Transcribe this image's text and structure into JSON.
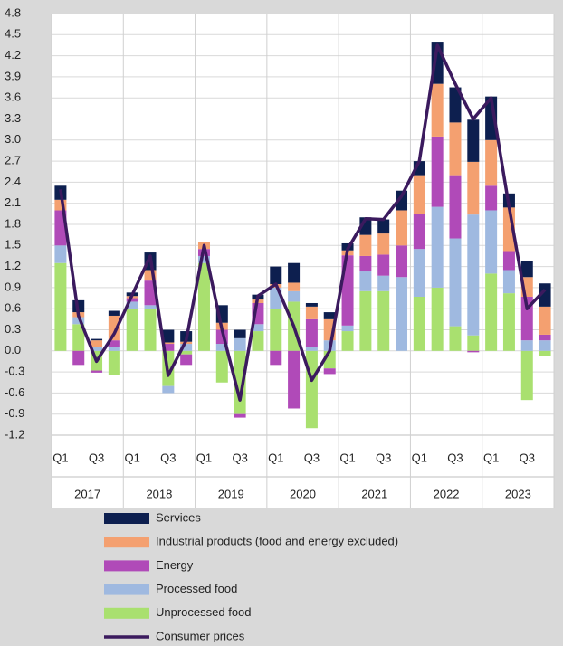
{
  "chart_data": {
    "type": "bar",
    "stacked": true,
    "categories": [
      "Q1",
      null,
      "Q3",
      null,
      "Q1",
      null,
      "Q3",
      null,
      "Q1",
      null,
      "Q3",
      null,
      "Q1",
      null,
      "Q3",
      null,
      "Q1",
      null,
      "Q3",
      null,
      "Q1",
      null,
      "Q3",
      null,
      "Q1",
      null,
      "Q3",
      null
    ],
    "groups": [
      "2017",
      "2018",
      "2019",
      "2020",
      "2021",
      "2022",
      "2023"
    ],
    "ylim": [
      -1.2,
      4.8
    ],
    "yticks": [
      -1.2,
      -0.9,
      -0.6,
      -0.3,
      {
        "value": 0,
        "label": "0.0"
      },
      0.3,
      0.6,
      0.9,
      1.2,
      1.5,
      1.8,
      2.1,
      2.4,
      2.7,
      {
        "value": 3,
        "label": "3.0"
      },
      3.3,
      3.6,
      3.9,
      4.2,
      4.5,
      4.8
    ],
    "grid": true,
    "series": [
      {
        "name": "Unprocessed food",
        "color": "#a9e06f",
        "values": [
          1.25,
          0.38,
          -0.28,
          -0.35,
          0.6,
          0.6,
          -0.5,
          -0.05,
          1.25,
          -0.45,
          -0.9,
          0.28,
          0.6,
          0.7,
          -1.1,
          -0.25,
          0.28,
          0.85,
          0.85,
          0.0,
          0.77,
          0.9,
          0.35,
          0.22,
          1.1,
          0.82,
          -0.7,
          -0.07
        ]
      },
      {
        "name": "Processed food",
        "color": "#9fb9e0",
        "values": [
          0.25,
          0.1,
          0.05,
          0.05,
          0.1,
          0.05,
          -0.1,
          0.1,
          0.1,
          0.1,
          0.18,
          0.1,
          0.3,
          0.15,
          0.05,
          0.15,
          0.08,
          0.28,
          0.22,
          1.05,
          0.68,
          1.15,
          1.25,
          1.72,
          0.9,
          0.33,
          0.15,
          0.15
        ]
      },
      {
        "name": "Energy",
        "color": "#b04ab8",
        "values": [
          0.5,
          -0.2,
          -0.03,
          0.1,
          0.05,
          0.35,
          0.1,
          -0.15,
          0.1,
          0.2,
          -0.05,
          0.3,
          -0.2,
          -0.82,
          0.4,
          -0.08,
          1.0,
          0.22,
          0.3,
          0.45,
          0.5,
          1.0,
          0.9,
          -0.02,
          0.35,
          0.27,
          0.62,
          0.08
        ]
      },
      {
        "name": "Industrial products (food and energy excluded)",
        "color": "#f4a070",
        "values": [
          0.15,
          0.07,
          0.1,
          0.35,
          0.03,
          0.15,
          0.02,
          0.03,
          0.1,
          0.1,
          0.0,
          0.05,
          0.05,
          0.12,
          0.18,
          0.3,
          0.07,
          0.3,
          0.3,
          0.5,
          0.55,
          0.75,
          0.75,
          0.75,
          0.65,
          0.62,
          0.28,
          0.4
        ]
      },
      {
        "name": "Services",
        "color": "#0d1f4f",
        "values": [
          0.2,
          0.17,
          0.02,
          0.07,
          0.05,
          0.25,
          0.18,
          0.15,
          0.0,
          0.25,
          0.12,
          0.07,
          0.25,
          0.28,
          0.05,
          0.1,
          0.1,
          0.25,
          0.2,
          0.28,
          0.2,
          0.6,
          0.5,
          0.6,
          0.62,
          0.2,
          0.23,
          0.33
        ]
      }
    ],
    "line": {
      "name": "Consumer prices",
      "color": "#3b1a5e",
      "values": [
        2.3,
        0.5,
        -0.15,
        0.25,
        0.8,
        1.35,
        -0.35,
        0.15,
        1.5,
        0.3,
        -0.7,
        0.78,
        0.95,
        0.35,
        -0.42,
        0.0,
        1.45,
        1.88,
        1.87,
        2.2,
        2.7,
        4.35,
        3.8,
        3.3,
        3.6,
        2.05,
        0.6,
        0.87
      ]
    }
  }
}
